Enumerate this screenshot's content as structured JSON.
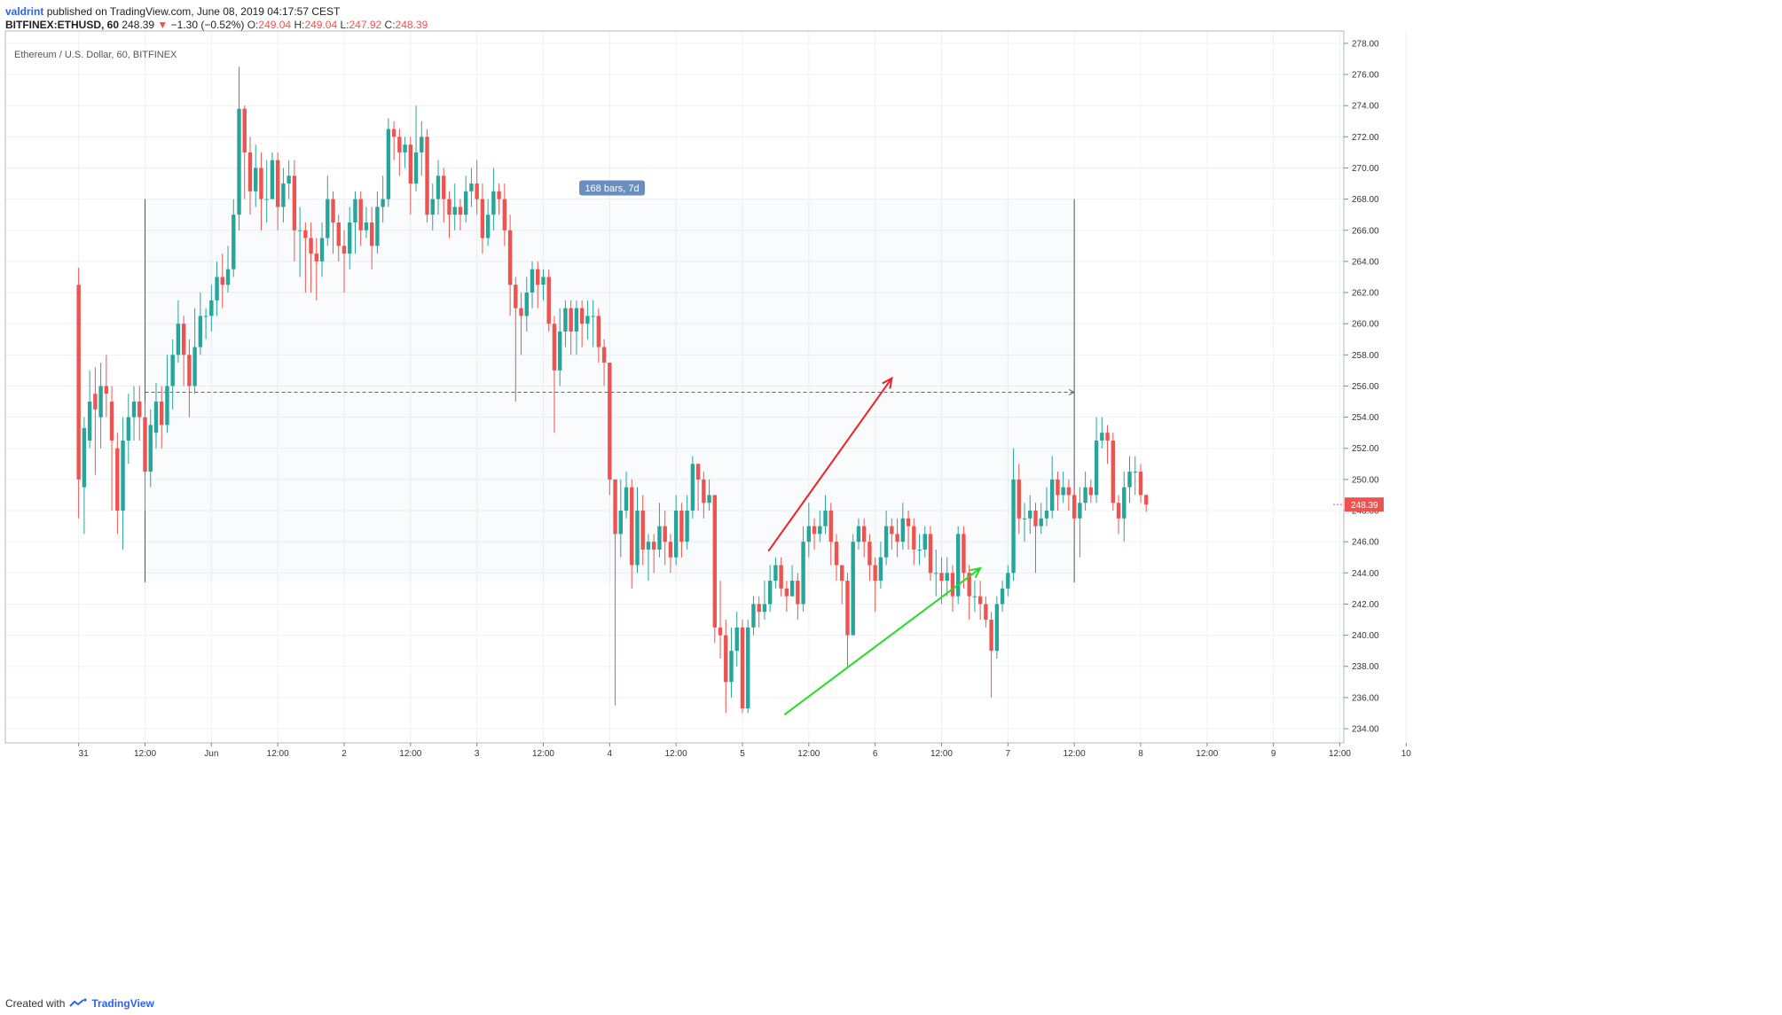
{
  "header": {
    "author": "valdrint",
    "published": "published on TradingView.com, June 08, 2019 04:17:57 CEST",
    "symbol": "BITFINEX:ETHUSD, 60",
    "last": "248.39",
    "change_arrow": "▼",
    "change": "−1.30 (−0.52%)",
    "o_label": "O:",
    "o_value": "249.04",
    "h_label": "H:",
    "h_value": "249.04",
    "l_label": "L:",
    "l_value": "247.92",
    "c_label": "C:",
    "c_value": "248.39"
  },
  "footer": {
    "created_with": "Created with",
    "brand": "TradingView"
  },
  "chart_data": {
    "type": "candlestick",
    "title": "Ethereum / U.S. Dollar, 60, BITFINEX",
    "ylim": [
      233.0,
      279.0
    ],
    "y_ticks": [
      "234.00",
      "236.00",
      "238.00",
      "240.00",
      "242.00",
      "244.00",
      "246.00",
      "248.00",
      "250.00",
      "252.00",
      "254.00",
      "256.00",
      "258.00",
      "260.00",
      "262.00",
      "264.00",
      "266.00",
      "268.00",
      "270.00",
      "272.00",
      "274.00",
      "276.00",
      "278.00"
    ],
    "x_ticks": [
      "31",
      "12:00",
      "Jun",
      "12:00",
      "2",
      "12:00",
      "3",
      "12:00",
      "4",
      "12:00",
      "5",
      "12:00",
      "6",
      "12:00",
      "7",
      "12:00",
      "8",
      "12:00",
      "9",
      "12:00",
      "10"
    ],
    "last_price_label": "248.39",
    "colors": {
      "up": "#26a69a",
      "down": "#ef5350",
      "grid": "#eef1f4",
      "axis": "#333333",
      "last_price": "#ef5350",
      "trend_upper": "#ee2222",
      "trend_lower": "#22dd22",
      "measure": "#6a8fbf"
    },
    "measure_label": "168 bars, 7d",
    "measure_level": 255.6,
    "trendlines": [
      {
        "name": "upper",
        "points": [
          [
            112.7,
            245.4
          ],
          [
            135,
            256.5
          ]
        ]
      },
      {
        "name": "lower",
        "points": [
          [
            115.6,
            234.9
          ],
          [
            151,
            244.3
          ]
        ]
      }
    ],
    "candles_start": -12,
    "candles": [
      [
        262.5,
        250.0,
        263.6,
        247.5
      ],
      [
        249.5,
        253.3,
        254.0,
        246.5
      ],
      [
        252.5,
        255.0,
        257.0,
        252.0
      ],
      [
        255.5,
        254.5,
        257.2,
        250.3
      ],
      [
        254.0,
        256.0,
        257.5,
        252.0
      ],
      [
        256.0,
        255.5,
        258.0,
        254.0
      ],
      [
        255.0,
        252.5,
        256.0,
        248.0
      ],
      [
        252.0,
        248.0,
        253.0,
        246.5
      ],
      [
        248.0,
        252.5,
        254.0,
        245.5
      ],
      [
        252.5,
        254.0,
        255.5,
        251.0
      ],
      [
        254.0,
        255.0,
        256.0,
        252.5
      ],
      [
        255.0,
        254.0,
        256.0,
        252.5
      ],
      [
        254.0,
        250.5,
        255.0,
        248.0
      ],
      [
        250.5,
        253.5,
        254.5,
        249.5
      ],
      [
        253.0,
        255.0,
        256.2,
        252.0
      ],
      [
        255.0,
        253.5,
        256.0,
        252.0
      ],
      [
        253.5,
        256.0,
        258.0,
        253.0
      ],
      [
        256.0,
        258.0,
        259.0,
        254.5
      ],
      [
        258.0,
        260.0,
        261.5,
        257.5
      ],
      [
        260.0,
        258.0,
        260.5,
        256.0
      ],
      [
        258.0,
        256.0,
        259.0,
        254.0
      ],
      [
        256.0,
        258.5,
        261.0,
        255.5
      ],
      [
        258.5,
        260.5,
        262.0,
        258.0
      ],
      [
        260.5,
        260.5,
        261.0,
        259.0
      ],
      [
        260.5,
        261.5,
        262.5,
        259.5
      ],
      [
        261.5,
        263.0,
        264.0,
        260.5
      ],
      [
        263.0,
        262.5,
        264.5,
        261.0
      ],
      [
        262.5,
        263.5,
        265.0,
        262.0
      ],
      [
        263.5,
        267.0,
        268.0,
        263.0
      ],
      [
        267.0,
        273.8,
        276.5,
        266.0
      ],
      [
        273.8,
        271.0,
        274.0,
        268.0
      ],
      [
        271.0,
        268.5,
        272.0,
        267.0
      ],
      [
        268.5,
        270.0,
        271.5,
        267.5
      ],
      [
        270.0,
        268.0,
        271.0,
        266.0
      ],
      [
        268.0,
        268.0,
        270.5,
        266.5
      ],
      [
        268.0,
        270.5,
        271.0,
        268.0
      ],
      [
        270.5,
        267.5,
        271.0,
        266.0
      ],
      [
        267.5,
        269.0,
        270.0,
        266.5
      ],
      [
        269.0,
        269.5,
        270.5,
        268.0
      ],
      [
        269.5,
        266.0,
        270.5,
        264.0
      ],
      [
        266.0,
        266.0,
        267.5,
        263.0
      ],
      [
        266.0,
        265.5,
        266.5,
        262.0
      ],
      [
        265.5,
        264.5,
        266.5,
        262.0
      ],
      [
        264.5,
        264.0,
        265.5,
        261.5
      ],
      [
        264.0,
        265.5,
        266.5,
        263.0
      ],
      [
        265.5,
        268.0,
        269.5,
        265.0
      ],
      [
        268.0,
        266.5,
        268.5,
        264.5
      ],
      [
        266.5,
        265.0,
        267.0,
        264.0
      ],
      [
        265.0,
        264.5,
        266.0,
        262.0
      ],
      [
        264.5,
        266.5,
        267.5,
        263.5
      ],
      [
        266.5,
        268.0,
        268.5,
        264.5
      ],
      [
        268.0,
        266.0,
        268.5,
        265.0
      ],
      [
        266.0,
        266.5,
        267.5,
        265.5
      ],
      [
        266.5,
        265.0,
        267.5,
        263.5
      ],
      [
        265.0,
        267.5,
        268.5,
        264.5
      ],
      [
        267.5,
        268.0,
        269.5,
        266.5
      ],
      [
        268.0,
        272.5,
        273.2,
        267.5
      ],
      [
        272.5,
        272.0,
        273.0,
        270.5
      ],
      [
        272.0,
        271.0,
        272.5,
        269.5
      ],
      [
        271.0,
        271.5,
        272.0,
        270.0
      ],
      [
        271.5,
        269.0,
        272.0,
        267.0
      ],
      [
        269.0,
        271.0,
        274.0,
        268.5
      ],
      [
        271.0,
        272.0,
        273.0,
        269.5
      ],
      [
        272.0,
        267.0,
        272.5,
        266.5
      ],
      [
        267.0,
        268.0,
        269.0,
        266.0
      ],
      [
        268.0,
        269.5,
        270.5,
        267.0
      ],
      [
        269.5,
        268.0,
        270.0,
        266.5
      ],
      [
        268.0,
        267.0,
        268.5,
        265.5
      ],
      [
        267.0,
        267.5,
        269.0,
        266.0
      ],
      [
        267.5,
        267.0,
        268.0,
        266.0
      ],
      [
        267.0,
        268.5,
        269.5,
        266.5
      ],
      [
        268.5,
        269.0,
        270.0,
        267.5
      ],
      [
        269.0,
        268.0,
        270.5,
        267.0
      ],
      [
        268.0,
        265.5,
        269.0,
        264.5
      ],
      [
        265.5,
        267.0,
        268.0,
        265.0
      ],
      [
        267.0,
        268.5,
        270.0,
        266.0
      ],
      [
        268.5,
        268.0,
        269.0,
        267.0
      ],
      [
        268.0,
        266.0,
        269.0,
        265.0
      ],
      [
        266.0,
        262.5,
        267.0,
        260.5
      ],
      [
        262.5,
        261.0,
        263.0,
        255.0
      ],
      [
        261.0,
        260.5,
        262.0,
        258.0
      ],
      [
        260.5,
        262.0,
        263.0,
        259.5
      ],
      [
        262.0,
        263.5,
        264.0,
        261.0
      ],
      [
        263.5,
        262.5,
        264.0,
        261.0
      ],
      [
        262.5,
        263.0,
        263.5,
        261.5
      ],
      [
        263.0,
        260.0,
        263.5,
        259.5
      ],
      [
        260.0,
        257.0,
        260.5,
        253.0
      ],
      [
        257.0,
        259.5,
        261.0,
        256.0
      ],
      [
        259.5,
        261.0,
        261.5,
        258.5
      ],
      [
        261.0,
        259.5,
        261.5,
        258.0
      ],
      [
        259.5,
        261.0,
        261.5,
        258.0
      ],
      [
        261.0,
        260.0,
        261.5,
        258.5
      ],
      [
        260.0,
        260.5,
        261.5,
        259.0
      ],
      [
        260.5,
        260.5,
        261.5,
        258.5
      ],
      [
        260.5,
        258.5,
        261.0,
        257.5
      ],
      [
        258.5,
        257.5,
        259.0,
        256.0
      ],
      [
        257.5,
        250.0,
        257.5,
        249.0
      ],
      [
        250.0,
        246.5,
        250.0,
        235.5
      ],
      [
        246.5,
        248.0,
        250.0,
        245.0
      ],
      [
        248.0,
        249.5,
        250.5,
        247.5
      ],
      [
        249.5,
        244.5,
        250.0,
        243.0
      ],
      [
        244.5,
        248.0,
        249.5,
        244.0
      ],
      [
        248.0,
        245.5,
        249.0,
        244.5
      ],
      [
        245.5,
        246.0,
        246.5,
        243.5
      ],
      [
        246.0,
        245.5,
        246.5,
        244.0
      ],
      [
        245.5,
        247.0,
        248.5,
        245.0
      ],
      [
        247.0,
        246.0,
        248.0,
        244.5
      ],
      [
        246.0,
        245.0,
        246.5,
        244.0
      ],
      [
        245.0,
        248.0,
        249.0,
        244.5
      ],
      [
        248.0,
        246.0,
        248.5,
        245.0
      ],
      [
        246.0,
        248.0,
        249.0,
        245.5
      ],
      [
        248.0,
        251.0,
        251.5,
        247.5
      ],
      [
        251.0,
        250.0,
        251.0,
        248.0
      ],
      [
        250.0,
        248.5,
        250.5,
        247.5
      ],
      [
        248.5,
        249.0,
        250.0,
        248.0
      ],
      [
        249.0,
        240.5,
        249.0,
        239.5
      ],
      [
        240.5,
        240.0,
        243.5,
        238.5
      ],
      [
        240.0,
        237.0,
        241.0,
        235.0
      ],
      [
        237.0,
        239.0,
        240.5,
        236.0
      ],
      [
        239.0,
        240.5,
        241.5,
        238.0
      ],
      [
        240.5,
        235.3,
        241.0,
        235.0
      ],
      [
        235.3,
        240.5,
        241.0,
        235.0
      ],
      [
        240.5,
        242.0,
        242.5,
        240.0
      ],
      [
        242.0,
        241.5,
        242.5,
        240.5
      ],
      [
        241.5,
        242.0,
        243.5,
        241.0
      ],
      [
        242.0,
        243.5,
        244.5,
        241.5
      ],
      [
        243.5,
        244.5,
        245.0,
        243.0
      ],
      [
        244.5,
        243.0,
        245.0,
        242.5
      ],
      [
        243.0,
        242.5,
        243.5,
        241.5
      ],
      [
        242.5,
        243.5,
        244.5,
        242.5
      ],
      [
        243.5,
        242.0,
        244.0,
        241.0
      ],
      [
        242.0,
        246.0,
        247.0,
        241.5
      ],
      [
        246.0,
        247.0,
        248.5,
        245.0
      ],
      [
        247.0,
        246.5,
        247.5,
        245.5
      ],
      [
        246.5,
        247.0,
        248.0,
        246.0
      ],
      [
        247.0,
        248.0,
        249.0,
        246.5
      ],
      [
        248.0,
        246.0,
        248.5,
        244.5
      ],
      [
        246.0,
        244.5,
        246.5,
        243.5
      ],
      [
        244.5,
        243.5,
        244.5,
        242.0
      ],
      [
        243.5,
        240.0,
        244.0,
        238.0
      ],
      [
        240.0,
        246.0,
        246.5,
        240.0
      ],
      [
        246.0,
        247.0,
        247.5,
        245.5
      ],
      [
        247.0,
        246.0,
        247.5,
        245.0
      ],
      [
        246.0,
        244.5,
        246.5,
        243.5
      ],
      [
        244.5,
        243.5,
        245.0,
        241.5
      ],
      [
        243.5,
        245.0,
        246.0,
        243.0
      ],
      [
        245.0,
        247.0,
        248.0,
        244.5
      ],
      [
        247.0,
        246.5,
        247.5,
        245.5
      ],
      [
        246.5,
        246.0,
        247.5,
        245.0
      ],
      [
        246.0,
        247.5,
        248.5,
        245.5
      ],
      [
        247.5,
        247.0,
        248.0,
        245.5
      ],
      [
        247.0,
        245.5,
        247.5,
        244.5
      ],
      [
        245.5,
        245.5,
        246.5,
        244.5
      ],
      [
        245.5,
        246.5,
        247.0,
        245.0
      ],
      [
        246.5,
        244.0,
        247.0,
        243.5
      ],
      [
        244.0,
        244.0,
        245.5,
        242.5
      ],
      [
        244.0,
        243.5,
        245.0,
        242.0
      ],
      [
        243.5,
        244.0,
        245.0,
        242.5
      ],
      [
        244.0,
        242.5,
        244.5,
        241.5
      ],
      [
        242.5,
        246.5,
        247.0,
        242.0
      ],
      [
        246.5,
        244.0,
        247.0,
        243.0
      ],
      [
        244.0,
        242.5,
        244.5,
        241.0
      ],
      [
        242.5,
        242.5,
        243.5,
        241.5
      ],
      [
        242.5,
        242.0,
        243.5,
        241.0
      ],
      [
        242.0,
        241.0,
        242.5,
        240.5
      ],
      [
        241.0,
        239.0,
        241.5,
        236.0
      ],
      [
        239.0,
        242.0,
        242.5,
        238.5
      ],
      [
        242.0,
        243.0,
        243.5,
        241.5
      ],
      [
        243.0,
        244.0,
        244.5,
        242.5
      ],
      [
        244.0,
        250.0,
        252.0,
        243.5
      ],
      [
        250.0,
        247.5,
        251.0,
        246.5
      ],
      [
        247.5,
        247.5,
        248.5,
        246.0
      ],
      [
        247.5,
        248.0,
        249.0,
        246.5
      ],
      [
        248.0,
        247.0,
        248.5,
        244.0
      ],
      [
        247.0,
        247.5,
        248.5,
        246.5
      ],
      [
        247.5,
        248.0,
        249.5,
        247.0
      ],
      [
        248.0,
        250.0,
        251.5,
        247.5
      ],
      [
        250.0,
        249.0,
        250.5,
        248.0
      ],
      [
        249.0,
        249.5,
        250.5,
        248.5
      ],
      [
        249.5,
        249.0,
        250.0,
        248.0
      ],
      [
        249.0,
        247.5,
        249.5,
        247.0
      ],
      [
        247.5,
        248.5,
        249.5,
        245.0
      ],
      [
        248.5,
        249.5,
        250.5,
        248.0
      ],
      [
        249.5,
        249.0,
        250.0,
        248.5
      ],
      [
        249.0,
        252.5,
        254.0,
        248.5
      ],
      [
        252.5,
        253.0,
        254.0,
        252.0
      ],
      [
        253.0,
        252.5,
        253.5,
        251.0
      ],
      [
        252.5,
        248.5,
        253.0,
        248.0
      ],
      [
        248.5,
        247.5,
        249.0,
        246.5
      ],
      [
        247.5,
        249.5,
        250.5,
        246.0
      ],
      [
        249.5,
        250.5,
        251.5,
        248.5
      ],
      [
        250.5,
        250.5,
        251.5,
        249.0
      ],
      [
        250.5,
        249.0,
        251.0,
        248.5
      ],
      [
        249.0,
        248.39,
        249.04,
        247.92
      ]
    ]
  }
}
